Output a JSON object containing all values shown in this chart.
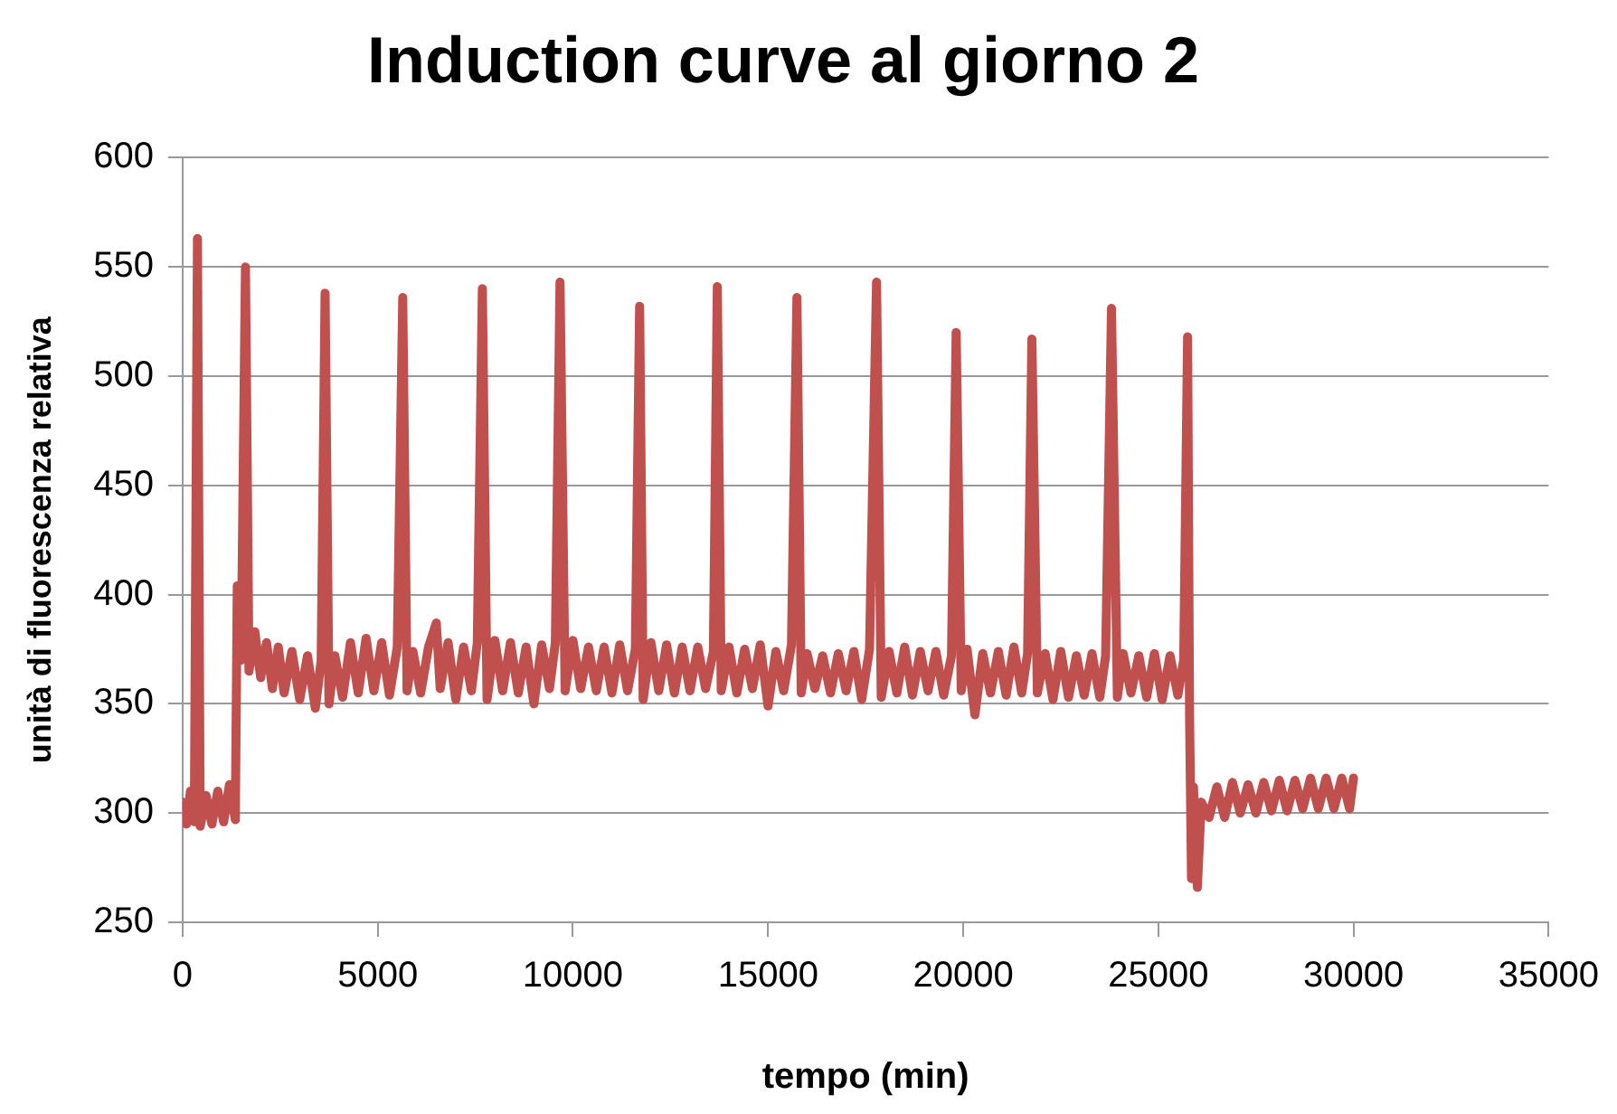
{
  "chart_data": {
    "type": "line",
    "title": "Induction curve al giorno 2",
    "xlabel": "tempo (min)",
    "ylabel": "unità di fluorescenza relativa",
    "xlim": [
      0,
      35000
    ],
    "xticks": [
      0,
      5000,
      10000,
      15000,
      20000,
      25000,
      30000,
      35000
    ],
    "ylim": [
      250,
      600
    ],
    "yticks": [
      250,
      300,
      350,
      400,
      450,
      500,
      550,
      600
    ],
    "grid": "y",
    "legend": false,
    "marker": "none",
    "line_style": "solid",
    "series": [
      {
        "color": "#c0504d",
        "x": [
          0,
          100,
          200,
          300,
          380,
          450,
          600,
          750,
          900,
          1050,
          1200,
          1350,
          1400,
          1500,
          1610,
          1700,
          1850,
          2000,
          2150,
          2300,
          2450,
          2600,
          2800,
          3000,
          3200,
          3400,
          3550,
          3650,
          3750,
          3900,
          4100,
          4300,
          4500,
          4700,
          4900,
          5100,
          5300,
          5500,
          5640,
          5750,
          5900,
          6100,
          6300,
          6500,
          6600,
          6800,
          7000,
          7200,
          7400,
          7550,
          7680,
          7800,
          8000,
          8200,
          8400,
          8600,
          8800,
          9000,
          9200,
          9400,
          9550,
          9670,
          9800,
          10000,
          10200,
          10400,
          10600,
          10800,
          11000,
          11200,
          11400,
          11600,
          11710,
          11800,
          12000,
          12200,
          12400,
          12600,
          12800,
          13000,
          13200,
          13400,
          13600,
          13700,
          13800,
          14000,
          14200,
          14400,
          14600,
          14800,
          15000,
          15200,
          15400,
          15600,
          15740,
          15850,
          16000,
          16200,
          16400,
          16600,
          16800,
          17000,
          17200,
          17400,
          17600,
          17780,
          17900,
          18100,
          18300,
          18500,
          18700,
          18900,
          19100,
          19300,
          19500,
          19700,
          19820,
          19950,
          20100,
          20300,
          20500,
          20700,
          20900,
          21100,
          21300,
          21500,
          21650,
          21760,
          21900,
          22100,
          22300,
          22500,
          22700,
          22900,
          23100,
          23300,
          23500,
          23650,
          23800,
          23950,
          24100,
          24300,
          24500,
          24700,
          24900,
          25100,
          25300,
          25500,
          25650,
          25750,
          25800,
          25850,
          25900,
          26000,
          26100,
          26300,
          26500,
          26700,
          26900,
          27100,
          27300,
          27500,
          27700,
          27900,
          28100,
          28300,
          28500,
          28700,
          28900,
          29100,
          29300,
          29500,
          29700,
          29900,
          30000
        ],
        "values": [
          305,
          295,
          310,
          296,
          563,
          294,
          308,
          295,
          310,
          296,
          313,
          297,
          404,
          370,
          550,
          365,
          383,
          362,
          378,
          357,
          376,
          355,
          374,
          352,
          372,
          348,
          370,
          538,
          350,
          372,
          353,
          378,
          355,
          380,
          356,
          378,
          354,
          376,
          536,
          356,
          374,
          355,
          376,
          387,
          357,
          378,
          352,
          376,
          356,
          378,
          540,
          352,
          379,
          356,
          378,
          355,
          376,
          350,
          377,
          357,
          378,
          543,
          356,
          379,
          357,
          376,
          356,
          376,
          355,
          377,
          356,
          375,
          532,
          352,
          378,
          356,
          377,
          355,
          376,
          356,
          376,
          357,
          374,
          541,
          356,
          376,
          355,
          375,
          357,
          377,
          349,
          374,
          356,
          377,
          536,
          355,
          373,
          357,
          372,
          355,
          373,
          356,
          374,
          352,
          375,
          543,
          353,
          374,
          355,
          376,
          354,
          374,
          356,
          374,
          354,
          372,
          520,
          356,
          375,
          345,
          373,
          355,
          374,
          354,
          376,
          355,
          373,
          517,
          355,
          373,
          352,
          374,
          353,
          372,
          354,
          373,
          353,
          372,
          531,
          353,
          373,
          355,
          372,
          353,
          373,
          352,
          372,
          354,
          370,
          518,
          345,
          270,
          312,
          266,
          305,
          298,
          312,
          298,
          314,
          300,
          313,
          300,
          314,
          301,
          315,
          301,
          315,
          302,
          316,
          302,
          316,
          302,
          316,
          302,
          316
        ]
      }
    ]
  }
}
